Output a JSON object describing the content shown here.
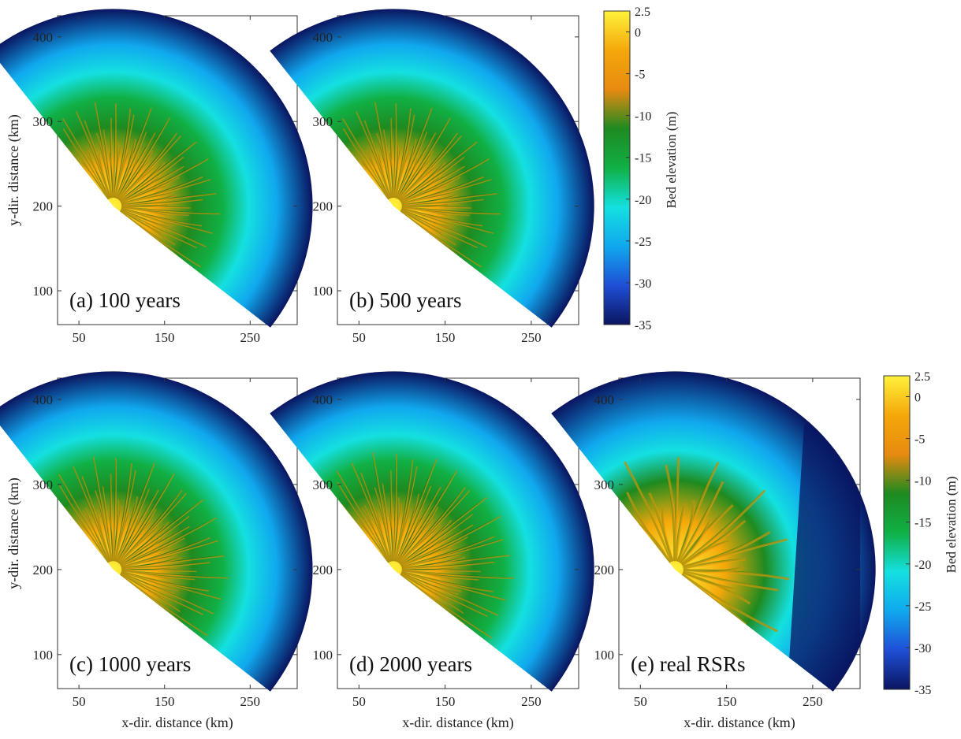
{
  "chart_data": {
    "type": "heatmap",
    "xlabel": "x-dir. distance (km)",
    "ylabel": "y-dir. distance (km)",
    "xticks": [
      50,
      150,
      250
    ],
    "yticks": [
      100,
      200,
      300,
      400
    ],
    "xlim": [
      25,
      305
    ],
    "ylim": [
      60,
      425
    ],
    "sector": {
      "apex_x": 90,
      "apex_y": 200,
      "outer_radius_km": 233
    },
    "colorbar": {
      "label": "Bed elevation (m)",
      "ticks": [
        "2.5",
        "0",
        "-5",
        "-10",
        "-15",
        "-20",
        "-25",
        "-30",
        "-35"
      ],
      "tick_values": [
        2.5,
        0,
        -5,
        -10,
        -15,
        -20,
        -25,
        -30,
        -35
      ],
      "range": [
        -35,
        2.5
      ],
      "colormap": [
        "#0a1560",
        "#1f4fd6",
        "#10a8ee",
        "#14e0e0",
        "#10b045",
        "#1e8a20",
        "#e88a10",
        "#f4a80a",
        "#fff23a"
      ]
    },
    "panels": [
      {
        "label": "(a) 100 years",
        "time_years": 100,
        "ridge_extent_km": 125
      },
      {
        "label": "(b) 500 years",
        "time_years": 500,
        "ridge_extent_km": 125
      },
      {
        "label": "(c) 1000 years",
        "time_years": 1000,
        "ridge_extent_km": 135
      },
      {
        "label": "(d) 2000 years",
        "time_years": 2000,
        "ridge_extent_km": 140
      },
      {
        "label": "(e) real RSRs",
        "time_years": null,
        "ridge_extent_km": 140
      }
    ]
  }
}
